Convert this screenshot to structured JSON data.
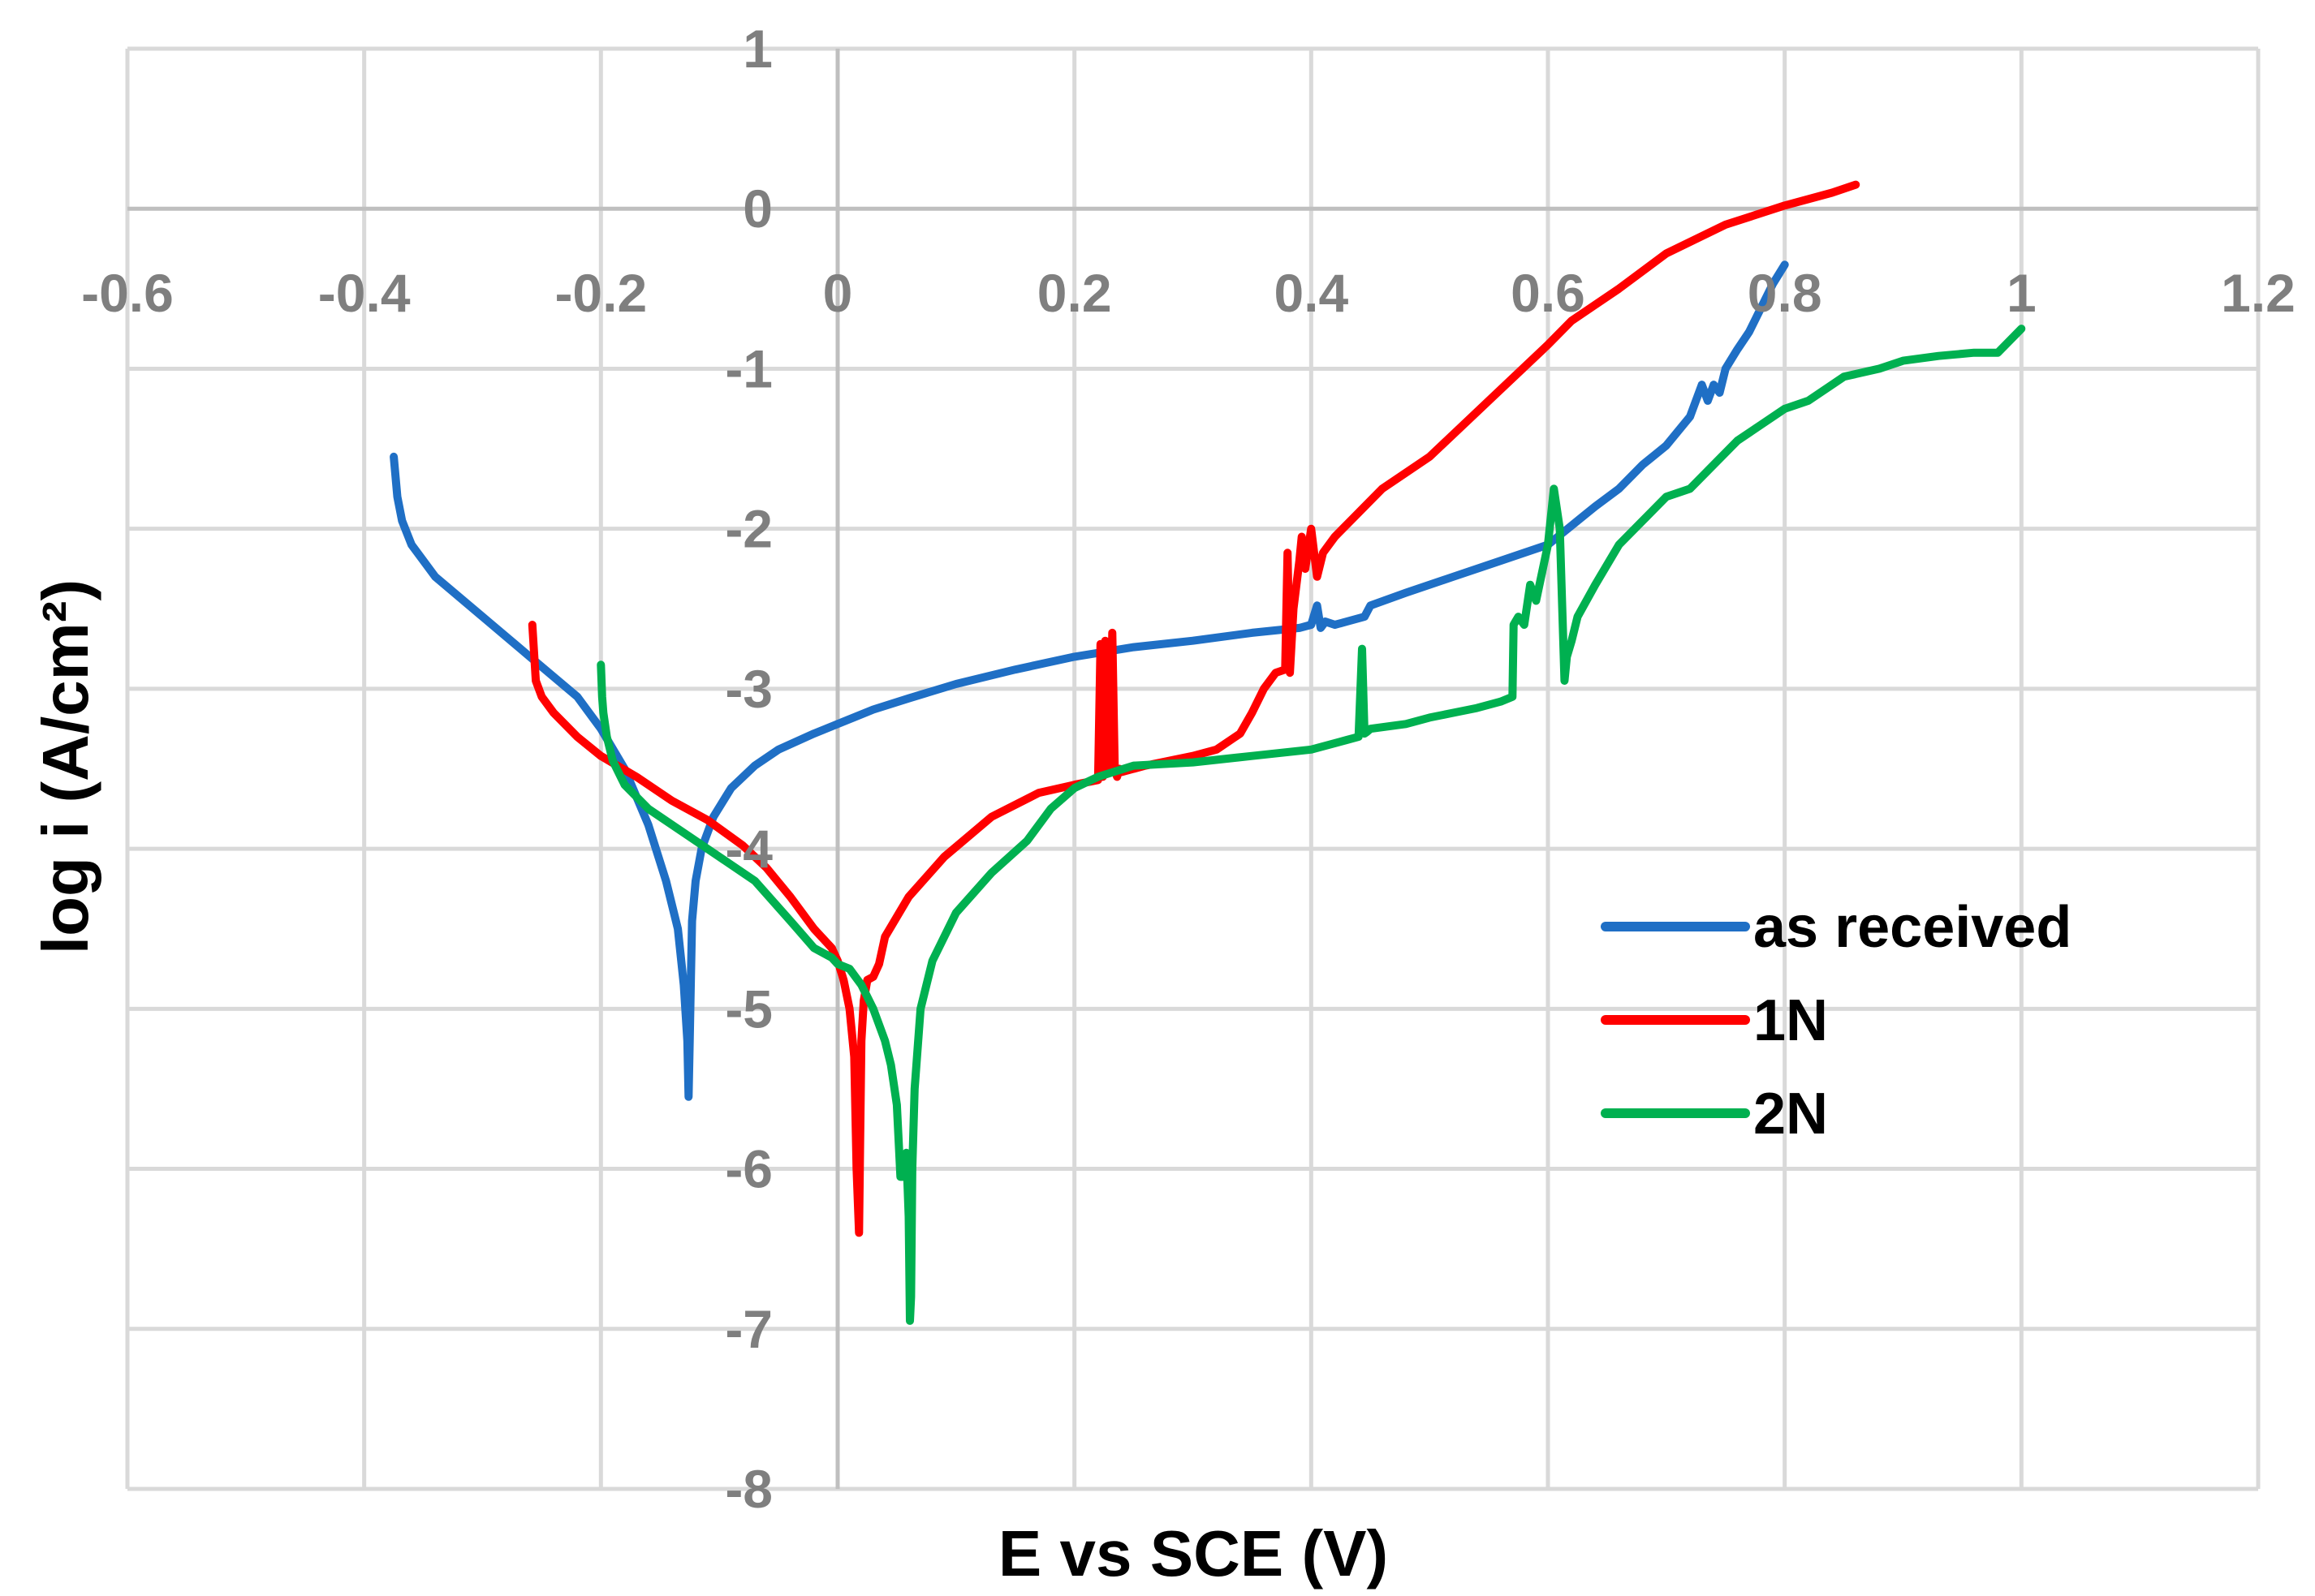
{
  "chart_data": {
    "type": "line",
    "title": "",
    "xlabel": "E vs SCE (V)",
    "ylabel": "log i (A/cm²)",
    "xlim": [
      -0.6,
      1.2
    ],
    "ylim": [
      -8,
      1
    ],
    "x_ticks": [
      -0.6,
      -0.4,
      -0.2,
      0,
      0.2,
      0.4,
      0.6,
      0.8,
      1,
      1.2
    ],
    "x_tick_labels": [
      "-0.6",
      "-0.4",
      "-0.2",
      "0",
      "0.2",
      "0.4",
      "0.6",
      "0.8",
      "1",
      "1.2"
    ],
    "y_ticks": [
      1,
      0,
      -1,
      -2,
      -3,
      -4,
      -5,
      -6,
      -7,
      -8
    ],
    "y_tick_labels": [
      "1",
      "0",
      "-1",
      "-2",
      "-3",
      "-4",
      "-5",
      "-6",
      "-7",
      "-8"
    ],
    "grid": true,
    "legend_position": "right",
    "series": [
      {
        "name": "as received",
        "color": "#1f6fc5",
        "x": [
          -0.375,
          -0.372,
          -0.368,
          -0.36,
          -0.34,
          -0.3,
          -0.26,
          -0.22,
          -0.2,
          -0.18,
          -0.16,
          -0.145,
          -0.135,
          -0.13,
          -0.127,
          -0.126,
          -0.125,
          -0.124,
          -0.123,
          -0.12,
          -0.115,
          -0.105,
          -0.09,
          -0.07,
          -0.05,
          -0.02,
          0.0,
          0.03,
          0.06,
          0.1,
          0.15,
          0.2,
          0.25,
          0.3,
          0.35,
          0.39,
          0.4,
          0.405,
          0.408,
          0.412,
          0.42,
          0.43,
          0.445,
          0.45,
          0.48,
          0.52,
          0.56,
          0.6,
          0.62,
          0.64,
          0.66,
          0.68,
          0.7,
          0.72,
          0.73,
          0.735,
          0.74,
          0.745,
          0.75,
          0.76,
          0.77,
          0.78,
          0.79,
          0.8
        ],
        "y": [
          -1.55,
          -1.8,
          -1.95,
          -2.1,
          -2.3,
          -2.55,
          -2.8,
          -3.05,
          -3.25,
          -3.5,
          -3.85,
          -4.2,
          -4.5,
          -4.85,
          -5.2,
          -5.55,
          -5.2,
          -4.8,
          -4.45,
          -4.2,
          -4.0,
          -3.8,
          -3.62,
          -3.48,
          -3.38,
          -3.28,
          -3.22,
          -3.13,
          -3.06,
          -2.97,
          -2.88,
          -2.8,
          -2.74,
          -2.7,
          -2.65,
          -2.62,
          -2.6,
          -2.48,
          -2.62,
          -2.58,
          -2.6,
          -2.58,
          -2.55,
          -2.48,
          -2.4,
          -2.3,
          -2.2,
          -2.1,
          -1.98,
          -1.86,
          -1.75,
          -1.6,
          -1.48,
          -1.3,
          -1.1,
          -1.2,
          -1.1,
          -1.15,
          -1.0,
          -0.88,
          -0.77,
          -0.62,
          -0.47,
          -0.35
        ]
      },
      {
        "name": "1N",
        "color": "#ff0000",
        "x": [
          -0.258,
          -0.255,
          -0.25,
          -0.24,
          -0.22,
          -0.2,
          -0.17,
          -0.14,
          -0.11,
          -0.08,
          -0.06,
          -0.04,
          -0.02,
          -0.005,
          0.0,
          0.005,
          0.01,
          0.014,
          0.016,
          0.018,
          0.019,
          0.02,
          0.022,
          0.025,
          0.03,
          0.035,
          0.04,
          0.06,
          0.09,
          0.13,
          0.17,
          0.2,
          0.22,
          0.222,
          0.224,
          0.226,
          0.228,
          0.23,
          0.232,
          0.234,
          0.236,
          0.238,
          0.24,
          0.26,
          0.28,
          0.3,
          0.32,
          0.34,
          0.35,
          0.36,
          0.37,
          0.378,
          0.38,
          0.382,
          0.385,
          0.39,
          0.392,
          0.395,
          0.4,
          0.405,
          0.41,
          0.42,
          0.44,
          0.46,
          0.5,
          0.55,
          0.6,
          0.62,
          0.66,
          0.7,
          0.75,
          0.8,
          0.84,
          0.86
        ],
        "y": [
          -2.6,
          -2.95,
          -3.05,
          -3.15,
          -3.3,
          -3.42,
          -3.55,
          -3.7,
          -3.82,
          -3.98,
          -4.12,
          -4.3,
          -4.5,
          -4.62,
          -4.7,
          -4.82,
          -5.0,
          -5.3,
          -6.0,
          -6.4,
          -5.8,
          -5.2,
          -4.95,
          -4.82,
          -4.8,
          -4.72,
          -4.55,
          -4.3,
          -4.05,
          -3.8,
          -3.65,
          -3.6,
          -3.57,
          -2.72,
          -3.55,
          -2.7,
          -3.5,
          -3.52,
          -2.65,
          -3.5,
          -3.55,
          -3.5,
          -3.52,
          -3.48,
          -3.45,
          -3.42,
          -3.38,
          -3.28,
          -3.15,
          -3.0,
          -2.9,
          -2.88,
          -2.15,
          -2.9,
          -2.5,
          -2.2,
          -2.05,
          -2.25,
          -2.0,
          -2.3,
          -2.15,
          -2.05,
          -1.9,
          -1.75,
          -1.55,
          -1.2,
          -0.85,
          -0.7,
          -0.5,
          -0.28,
          -0.1,
          0.02,
          0.1,
          0.15
        ]
      },
      {
        "name": "2N",
        "color": "#00b050",
        "x": [
          -0.2,
          -0.199,
          -0.198,
          -0.195,
          -0.19,
          -0.18,
          -0.16,
          -0.13,
          -0.1,
          -0.07,
          -0.04,
          -0.02,
          -0.005,
          0.0,
          0.01,
          0.02,
          0.03,
          0.04,
          0.045,
          0.05,
          0.053,
          0.055,
          0.058,
          0.06,
          0.061,
          0.062,
          0.063,
          0.065,
          0.07,
          0.08,
          0.1,
          0.13,
          0.16,
          0.18,
          0.2,
          0.22,
          0.25,
          0.3,
          0.35,
          0.4,
          0.43,
          0.44,
          0.443,
          0.445,
          0.447,
          0.45,
          0.48,
          0.5,
          0.52,
          0.54,
          0.56,
          0.57,
          0.571,
          0.575,
          0.58,
          0.585,
          0.59,
          0.6,
          0.605,
          0.61,
          0.614,
          0.616,
          0.62,
          0.625,
          0.64,
          0.66,
          0.68,
          0.7,
          0.72,
          0.74,
          0.76,
          0.78,
          0.8,
          0.82,
          0.85,
          0.88,
          0.9,
          0.93,
          0.96,
          0.98,
          1.0
        ],
        "y": [
          -2.85,
          -3.05,
          -3.15,
          -3.3,
          -3.45,
          -3.6,
          -3.75,
          -3.9,
          -4.05,
          -4.2,
          -4.45,
          -4.62,
          -4.68,
          -4.72,
          -4.75,
          -4.85,
          -5.0,
          -5.2,
          -5.35,
          -5.6,
          -6.05,
          -6.05,
          -5.9,
          -6.3,
          -6.95,
          -6.8,
          -6.0,
          -5.5,
          -5.0,
          -4.7,
          -4.4,
          -4.15,
          -3.95,
          -3.75,
          -3.62,
          -3.55,
          -3.48,
          -3.46,
          -3.42,
          -3.38,
          -3.32,
          -3.3,
          -2.75,
          -3.28,
          -3.27,
          -3.25,
          -3.22,
          -3.18,
          -3.15,
          -3.12,
          -3.08,
          -3.05,
          -2.6,
          -2.55,
          -2.6,
          -2.35,
          -2.45,
          -2.1,
          -1.75,
          -2.0,
          -2.95,
          -2.8,
          -2.7,
          -2.55,
          -2.35,
          -2.1,
          -1.95,
          -1.8,
          -1.75,
          -1.6,
          -1.45,
          -1.35,
          -1.25,
          -1.2,
          -1.05,
          -1.0,
          -0.95,
          -0.92,
          -0.9,
          -0.9,
          -0.75
        ]
      }
    ]
  }
}
